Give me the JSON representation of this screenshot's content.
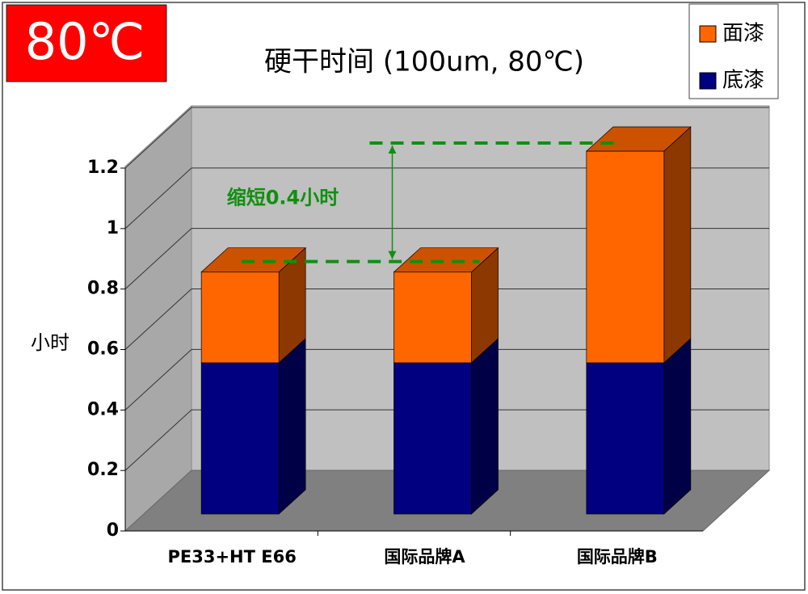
{
  "chart_data": {
    "type": "bar",
    "stacked": true,
    "badge": "80℃",
    "title": "硬干时间 (100um, 80℃)",
    "y_label": "小时",
    "annotation": "缩短0.4小时",
    "categories": [
      "PE33+HT E66",
      "国际品牌A",
      "国际品牌B"
    ],
    "series": [
      {
        "name": "底漆",
        "color": "#000080",
        "values": [
          0.5,
          0.5,
          0.5
        ]
      },
      {
        "name": "面漆",
        "color": "#ff6600",
        "values": [
          0.3,
          0.3,
          0.7
        ]
      }
    ],
    "ylim": [
      0,
      1.2
    ],
    "yticks": [
      0,
      0.2,
      0.4,
      0.6,
      0.8,
      1,
      1.2
    ],
    "grid": true
  }
}
